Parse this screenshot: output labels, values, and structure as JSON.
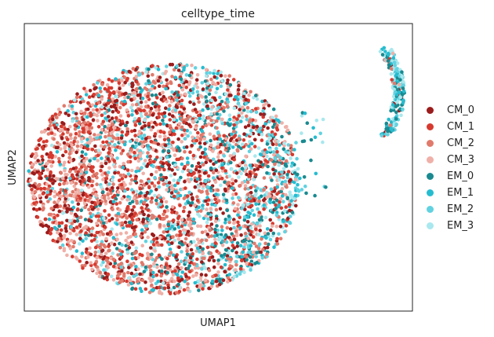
{
  "chart_data": {
    "type": "scatter",
    "title": "celltype_time",
    "xlabel": "UMAP1",
    "ylabel": "UMAP2",
    "xticks": [],
    "yticks": [],
    "grid": false,
    "legend_position": "right-outside",
    "xlim": [
      0,
      10
    ],
    "ylim": [
      0,
      10
    ],
    "series": [
      {
        "name": "CM_0",
        "color": "#9b1c1c"
      },
      {
        "name": "CM_1",
        "color": "#d63a2f"
      },
      {
        "name": "CM_2",
        "color": "#e07a6c"
      },
      {
        "name": "CM_3",
        "color": "#efb0a8"
      },
      {
        "name": "EM_0",
        "color": "#1a8a90"
      },
      {
        "name": "EM_1",
        "color": "#26bcd0"
      },
      {
        "name": "EM_2",
        "color": "#62d2e0"
      },
      {
        "name": "EM_3",
        "color": "#a9e8ee"
      }
    ],
    "clusters": [
      {
        "name": "main",
        "center": [
          3.6,
          4.6
        ],
        "radius": [
          3.5,
          4.0
        ]
      },
      {
        "name": "arc",
        "center": [
          9.3,
          7.6
        ],
        "radius": [
          0.35,
          1.5
        ]
      }
    ]
  }
}
